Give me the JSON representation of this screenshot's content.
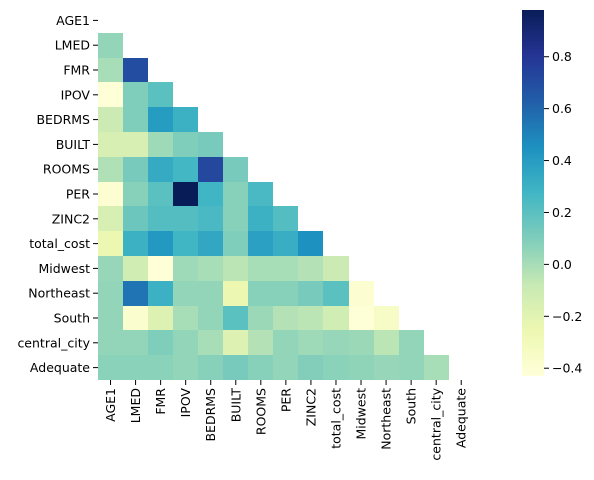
{
  "chart_data": {
    "type": "heatmap",
    "title": "",
    "xlabel": "",
    "ylabel": "",
    "mask": "upper-triangle including diagonal",
    "variables": [
      "AGE1",
      "LMED",
      "FMR",
      "IPOV",
      "BEDRMS",
      "BUILT",
      "ROOMS",
      "PER",
      "ZINC2",
      "total_cost",
      "Midwest",
      "Northeast",
      "South",
      "central_city",
      "Adequate"
    ],
    "values": [
      [],
      [
        0.05
      ],
      [
        0.0,
        0.7
      ],
      [
        -0.42,
        0.1,
        0.2
      ],
      [
        -0.1,
        0.1,
        0.4,
        0.3
      ],
      [
        -0.15,
        -0.15,
        0.02,
        0.1,
        0.12
      ],
      [
        -0.02,
        0.12,
        0.33,
        0.27,
        0.72,
        0.12
      ],
      [
        -0.4,
        0.08,
        0.2,
        0.98,
        0.28,
        0.08,
        0.25
      ],
      [
        -0.15,
        0.15,
        0.22,
        0.22,
        0.25,
        0.08,
        0.3,
        0.22
      ],
      [
        -0.25,
        0.3,
        0.42,
        0.28,
        0.35,
        0.1,
        0.38,
        0.32,
        0.45
      ],
      [
        0.04,
        -0.12,
        -0.42,
        0.02,
        0.0,
        -0.05,
        0.0,
        0.0,
        -0.03,
        -0.1
      ],
      [
        0.05,
        0.55,
        0.3,
        0.05,
        0.05,
        -0.25,
        0.08,
        0.08,
        0.12,
        0.2,
        -0.4
      ],
      [
        0.05,
        -0.38,
        -0.18,
        0.0,
        0.05,
        0.2,
        0.03,
        -0.03,
        -0.05,
        -0.12,
        -0.42,
        -0.35
      ],
      [
        0.05,
        0.05,
        0.1,
        0.05,
        0.0,
        -0.18,
        -0.03,
        0.05,
        0.02,
        0.04,
        0.03,
        -0.05,
        0.05
      ],
      [
        0.07,
        0.07,
        0.07,
        0.05,
        0.08,
        0.12,
        0.08,
        0.05,
        0.09,
        0.07,
        0.06,
        0.04,
        0.05,
        0.0
      ]
    ],
    "colorbar": {
      "colormap": "YlGnBu",
      "vmin": -0.43,
      "vmax": 0.98,
      "ticks": [
        -0.4,
        -0.2,
        0.0,
        0.2,
        0.4,
        0.6,
        0.8
      ],
      "tick_labels": [
        "−0.4",
        "−0.2",
        "0.0",
        "0.2",
        "0.4",
        "0.6",
        "0.8"
      ]
    },
    "grid": false
  }
}
